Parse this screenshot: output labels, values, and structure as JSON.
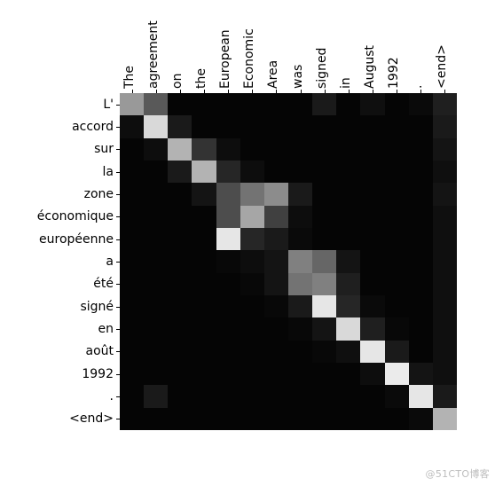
{
  "attention_heatmap": {
    "type": "heatmap",
    "x_labels": [
      "The",
      "agreement",
      "on",
      "the",
      "European",
      "Economic",
      "Area",
      "was",
      "signed",
      "in",
      "August",
      "1992",
      ".",
      "<end>"
    ],
    "y_labels": [
      "L'",
      "accord",
      "sur",
      "la",
      "zone",
      "économique",
      "européenne",
      "a",
      "été",
      "signé",
      "en",
      "août",
      "1992",
      ".",
      "<end>"
    ],
    "x_label_rotation": 90,
    "label_fontsize": 14,
    "label_color": "#000000",
    "background_color": "#ffffff",
    "colormap": "gray",
    "vmin": 0.0,
    "vmax": 1.0,
    "cell_border": "none",
    "tick_length": 4,
    "values": [
      [
        0.6,
        0.35,
        0.02,
        0.02,
        0.02,
        0.02,
        0.02,
        0.02,
        0.1,
        0.02,
        0.06,
        0.02,
        0.04,
        0.12
      ],
      [
        0.05,
        0.85,
        0.1,
        0.02,
        0.02,
        0.02,
        0.02,
        0.02,
        0.02,
        0.02,
        0.02,
        0.02,
        0.02,
        0.1
      ],
      [
        0.02,
        0.05,
        0.7,
        0.2,
        0.05,
        0.02,
        0.02,
        0.02,
        0.02,
        0.02,
        0.02,
        0.02,
        0.02,
        0.08
      ],
      [
        0.02,
        0.02,
        0.1,
        0.7,
        0.15,
        0.05,
        0.02,
        0.02,
        0.02,
        0.02,
        0.02,
        0.02,
        0.02,
        0.06
      ],
      [
        0.02,
        0.02,
        0.02,
        0.08,
        0.3,
        0.45,
        0.55,
        0.1,
        0.02,
        0.02,
        0.02,
        0.02,
        0.02,
        0.08
      ],
      [
        0.02,
        0.02,
        0.02,
        0.02,
        0.3,
        0.65,
        0.25,
        0.05,
        0.02,
        0.02,
        0.02,
        0.02,
        0.02,
        0.06
      ],
      [
        0.02,
        0.02,
        0.02,
        0.02,
        0.9,
        0.15,
        0.1,
        0.04,
        0.02,
        0.02,
        0.02,
        0.02,
        0.02,
        0.06
      ],
      [
        0.02,
        0.02,
        0.02,
        0.02,
        0.03,
        0.05,
        0.08,
        0.5,
        0.4,
        0.08,
        0.02,
        0.02,
        0.02,
        0.06
      ],
      [
        0.02,
        0.02,
        0.02,
        0.02,
        0.02,
        0.03,
        0.08,
        0.45,
        0.5,
        0.12,
        0.02,
        0.02,
        0.02,
        0.06
      ],
      [
        0.02,
        0.02,
        0.02,
        0.02,
        0.02,
        0.02,
        0.03,
        0.1,
        0.9,
        0.15,
        0.04,
        0.02,
        0.02,
        0.06
      ],
      [
        0.02,
        0.02,
        0.02,
        0.02,
        0.02,
        0.02,
        0.02,
        0.03,
        0.08,
        0.85,
        0.12,
        0.03,
        0.02,
        0.06
      ],
      [
        0.02,
        0.02,
        0.02,
        0.02,
        0.02,
        0.02,
        0.02,
        0.02,
        0.03,
        0.06,
        0.9,
        0.1,
        0.02,
        0.06
      ],
      [
        0.02,
        0.02,
        0.02,
        0.02,
        0.02,
        0.02,
        0.02,
        0.02,
        0.02,
        0.02,
        0.05,
        0.92,
        0.08,
        0.06
      ],
      [
        0.02,
        0.1,
        0.02,
        0.02,
        0.02,
        0.02,
        0.02,
        0.02,
        0.02,
        0.02,
        0.02,
        0.04,
        0.9,
        0.1
      ],
      [
        0.02,
        0.02,
        0.02,
        0.02,
        0.02,
        0.02,
        0.02,
        0.02,
        0.02,
        0.02,
        0.02,
        0.02,
        0.04,
        0.7
      ]
    ]
  },
  "watermark": "@51CTO博客"
}
